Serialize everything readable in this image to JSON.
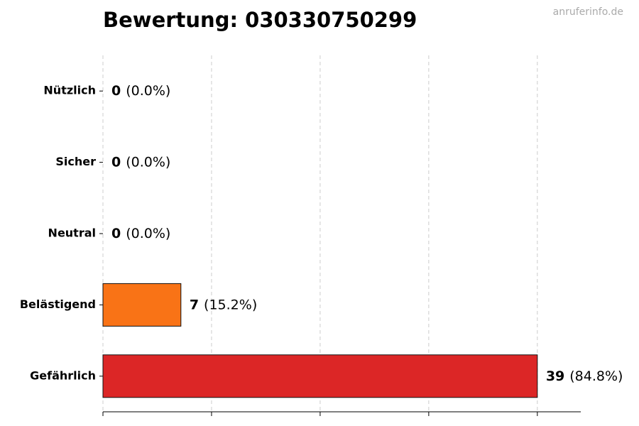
{
  "chart_data": {
    "type": "barh",
    "title": "Bewertung: 030330750299",
    "watermark": "anruferinfo.de",
    "categories": [
      "Nützlich",
      "Sicher",
      "Neutral",
      "Belästigend",
      "Gefährlich"
    ],
    "values": [
      0,
      0,
      0,
      7,
      39
    ],
    "percentage_labels": [
      "(0.0%)",
      "(0.0%)",
      "(0.0%)",
      "(15.2%)",
      "(84.8%)"
    ],
    "colors": [
      "#22c55e",
      "#3b82f6",
      "#9ca3af",
      "#f97316",
      "#dc2626"
    ],
    "xlim": [
      0,
      42.9
    ],
    "xticks": [
      0,
      9.75,
      19.5,
      29.25,
      39
    ],
    "grid": true
  }
}
